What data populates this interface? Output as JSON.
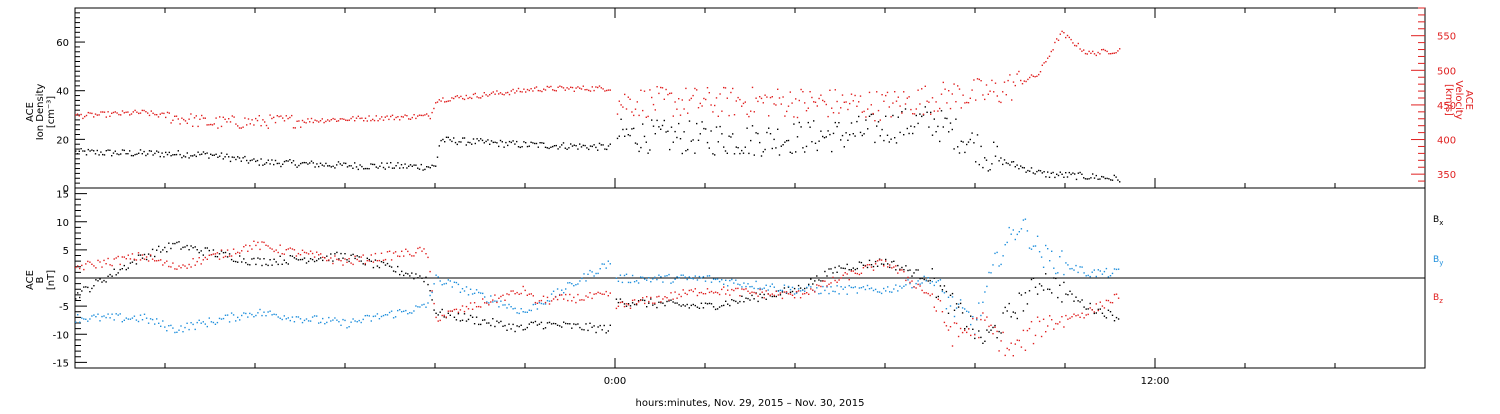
{
  "colors": {
    "black": "#000000",
    "red": "#e02020",
    "blue": "#1f8fdc"
  },
  "x_axis": {
    "title": "hours:minutes, Nov. 29, 2015 – Nov. 30, 2015",
    "tick_labels": [
      {
        "text": "0:00",
        "hour": 0
      },
      {
        "text": "12:00",
        "hour": 12
      }
    ],
    "range_hours": [
      -12,
      18
    ],
    "minor_tick_hours": 2
  },
  "chart_data": [
    {
      "type": "scatter",
      "panel": "top",
      "left_axis": {
        "label_lines": [
          "ACE",
          "Ion Density",
          "[cm⁻³]"
        ],
        "ylim": [
          0,
          74
        ],
        "tick_values": [
          0,
          20,
          40,
          60
        ]
      },
      "right_axis": {
        "label_lines": [
          "ACE",
          "Velocity",
          "[km/s]"
        ],
        "ylim": [
          330,
          590
        ],
        "tick_values": [
          350,
          400,
          450,
          500,
          550
        ],
        "color": "red"
      },
      "series": [
        {
          "axis": "left",
          "color": "black",
          "keypoints_hours": [
            -12,
            -9,
            -8,
            -6,
            -4,
            -3.9,
            -2,
            -1.8,
            -0.1,
            0,
            3,
            5,
            7,
            8,
            8.3,
            9.5,
            10.5,
            11.2
          ],
          "keypoints_values": [
            15,
            14,
            11,
            9.5,
            9,
            20,
            18,
            18,
            17,
            22,
            20,
            22,
            28,
            18,
            13,
            6,
            5,
            4
          ]
        },
        {
          "axis": "right",
          "color": "red",
          "keypoints_hours": [
            -12,
            -10.5,
            -9,
            -7,
            -4.1,
            -4,
            -2,
            -1.8,
            -0.1,
            0,
            4,
            6,
            7.5,
            8.5,
            9.4,
            9.9,
            10.5,
            11.2
          ],
          "keypoints_values": [
            435,
            440,
            425,
            428,
            435,
            458,
            472,
            474,
            475,
            455,
            455,
            450,
            465,
            470,
            495,
            555,
            525,
            530
          ]
        }
      ]
    },
    {
      "type": "scatter",
      "panel": "bottom",
      "left_axis": {
        "label_lines": [
          "ACE",
          "B",
          "[nT]"
        ],
        "ylim": [
          -16,
          16
        ],
        "tick_values": [
          -15,
          -10,
          -5,
          0,
          5,
          10,
          15
        ]
      },
      "zero_line": true,
      "series": [
        {
          "name": "Bx",
          "label_base": "B",
          "label_sub": "x",
          "color": "black",
          "keypoints_hours": [
            -12,
            -10.5,
            -9.8,
            -8,
            -6,
            -4.2,
            -4,
            -2,
            -1.8,
            -0.1,
            0,
            2,
            4,
            5,
            6,
            7,
            7.5,
            8.2,
            8.8,
            9.5,
            10.5,
            11.2
          ],
          "keypoints_values": [
            -3,
            4,
            6,
            3,
            4,
            0,
            -6,
            -9,
            -8,
            -9,
            -4,
            -5,
            -2,
            2,
            3,
            0,
            -5,
            -11,
            -6,
            0,
            -5,
            -7
          ]
        },
        {
          "name": "By",
          "label_base": "B",
          "label_sub": "y",
          "color": "blue",
          "keypoints_hours": [
            -12,
            -10.5,
            -9.8,
            -8,
            -6,
            -4.2,
            -4,
            -2,
            -1.8,
            -0.1,
            0,
            2,
            4,
            6,
            7,
            7.5,
            8,
            8.5,
            9,
            9.5,
            10.5,
            11.2
          ],
          "keypoints_values": [
            -7,
            -7,
            -9,
            -6,
            -8,
            -5,
            0,
            -6,
            -5,
            3,
            0,
            0,
            -2,
            -2,
            0,
            -5,
            -8,
            4,
            10,
            4,
            1,
            1
          ]
        },
        {
          "name": "Bz",
          "label_base": "B",
          "label_sub": "z",
          "color": "red",
          "keypoints_hours": [
            -12,
            -10.5,
            -9.8,
            -8,
            -6,
            -4.2,
            -4,
            -2,
            -1.8,
            -0.1,
            0,
            2,
            4,
            6,
            7,
            7.5,
            8.2,
            8.8,
            9.5,
            10.5,
            11.2
          ],
          "keypoints_values": [
            2,
            4,
            2,
            6,
            3,
            5,
            -7,
            -2,
            -4,
            -3,
            -5,
            -2,
            -3,
            3,
            -3,
            -10,
            -8,
            -13,
            -8,
            -6,
            -3
          ]
        }
      ]
    }
  ]
}
